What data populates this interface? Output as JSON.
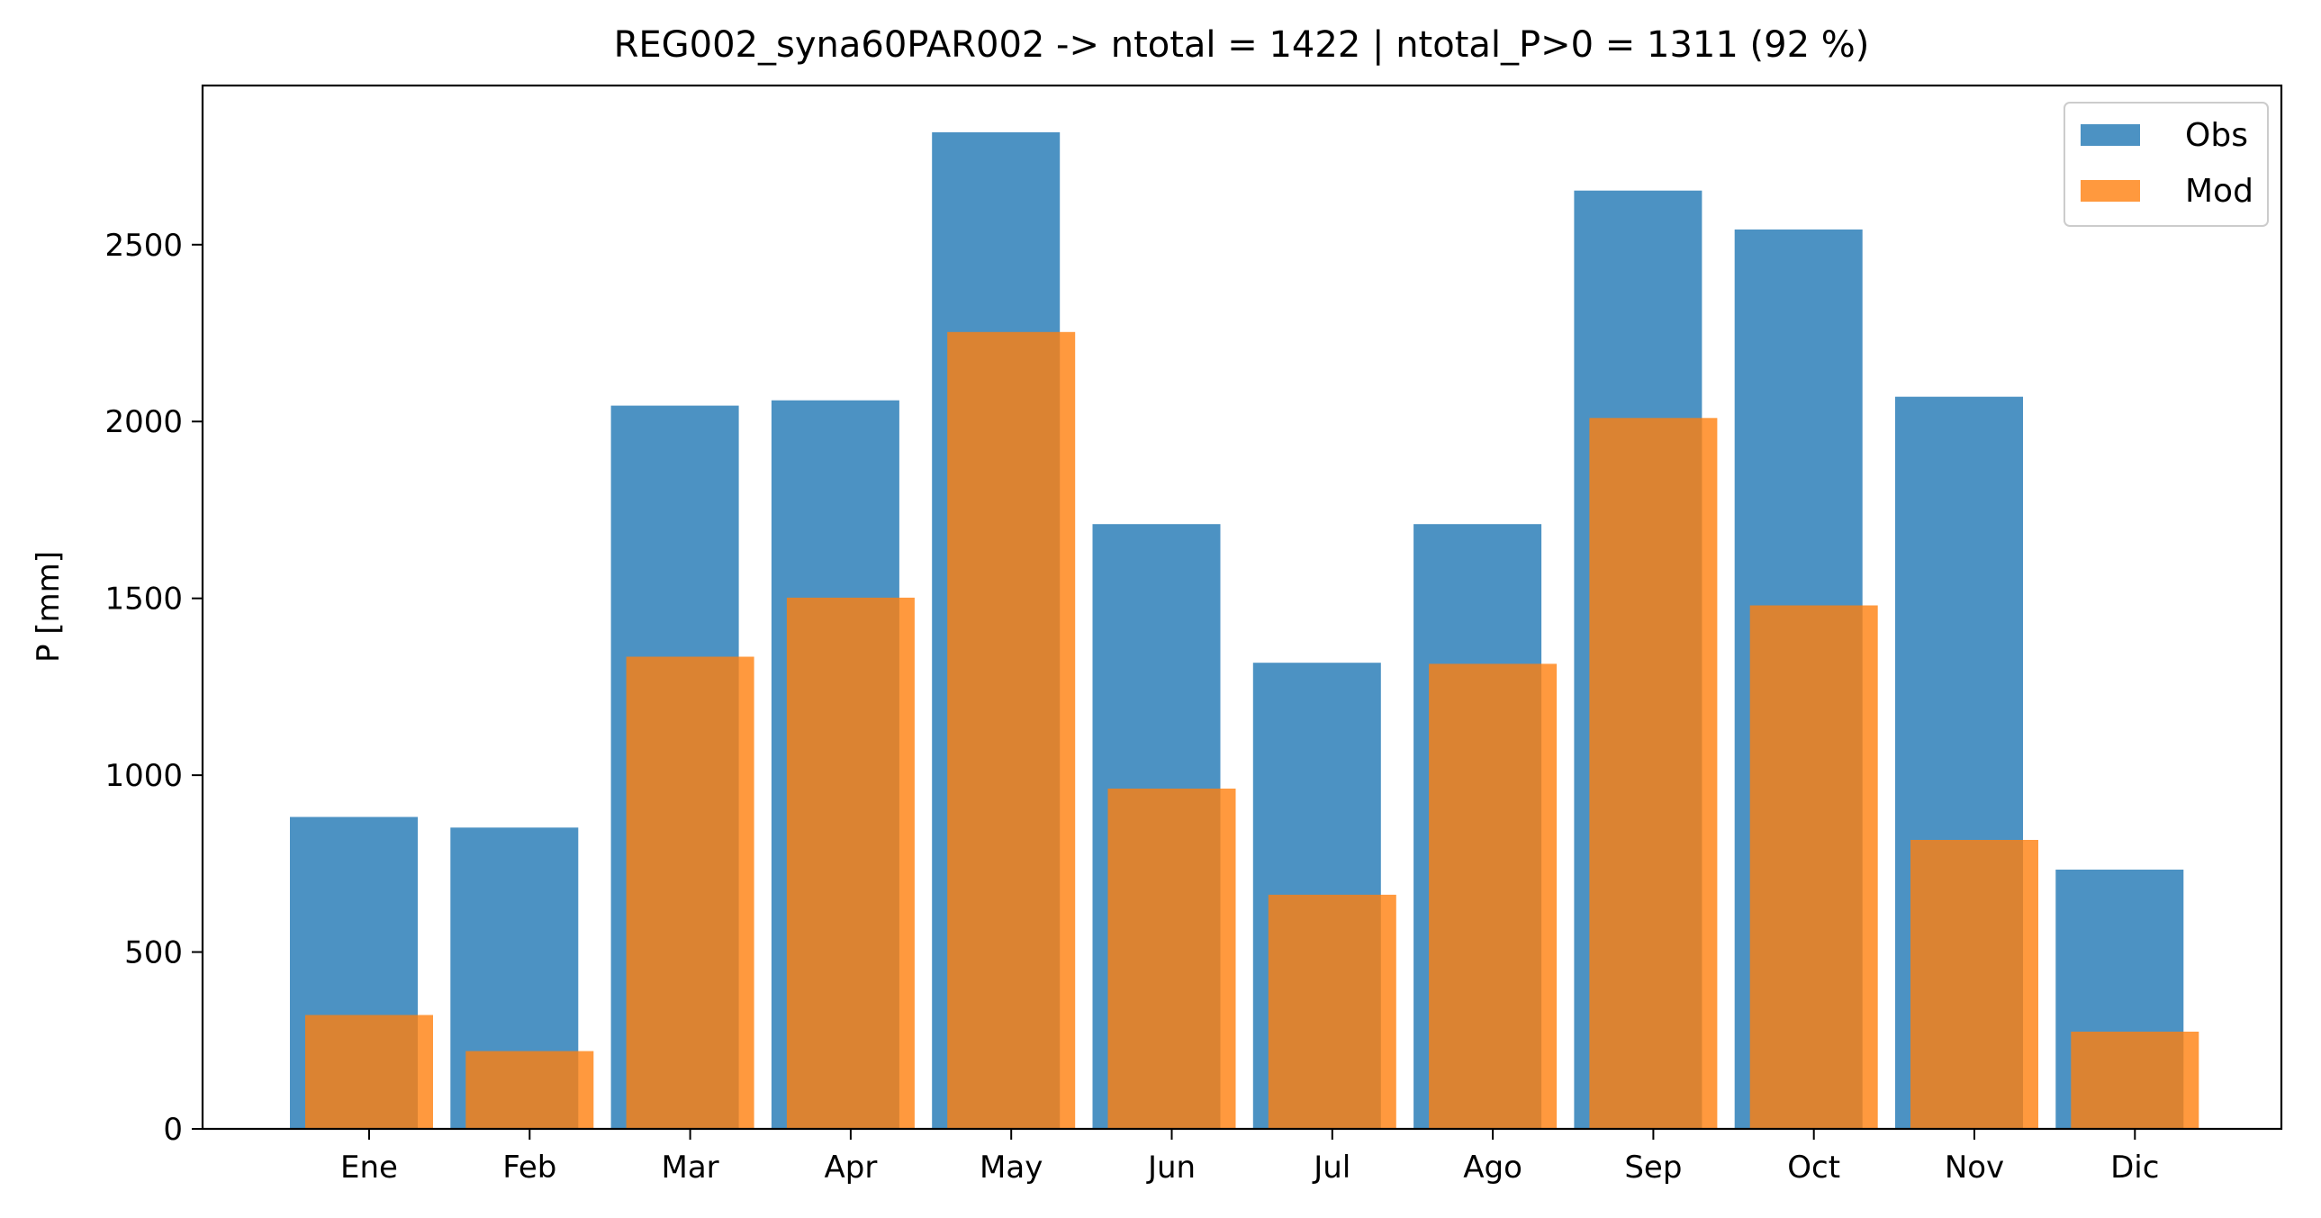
{
  "chart_data": {
    "type": "bar",
    "title": "REG002_syna60PAR002 -> ntotal = 1422 | ntotal_P>0 = 1311 (92 %)",
    "xlabel": "",
    "ylabel": "P [mm]",
    "categories": [
      "Ene",
      "Feb",
      "Mar",
      "Apr",
      "May",
      "Jun",
      "Jul",
      "Ago",
      "Sep",
      "Oct",
      "Nov",
      "Dic"
    ],
    "series": [
      {
        "name": "Obs",
        "color": "#1f77b4",
        "values": [
          882,
          852,
          2045,
          2060,
          2818,
          1710,
          1318,
          1710,
          2653,
          2543,
          2070,
          733
        ]
      },
      {
        "name": "Mod",
        "color": "#ff7f0e",
        "values": [
          322,
          220,
          1335,
          1502,
          2253,
          962,
          662,
          1315,
          2010,
          1480,
          817,
          275
        ]
      }
    ],
    "ylim": [
      0,
      2950
    ],
    "yticks": [
      "0",
      "500",
      "1000",
      "1500",
      "2000",
      "2500"
    ],
    "legend_position": "top-right",
    "grid": false
  }
}
